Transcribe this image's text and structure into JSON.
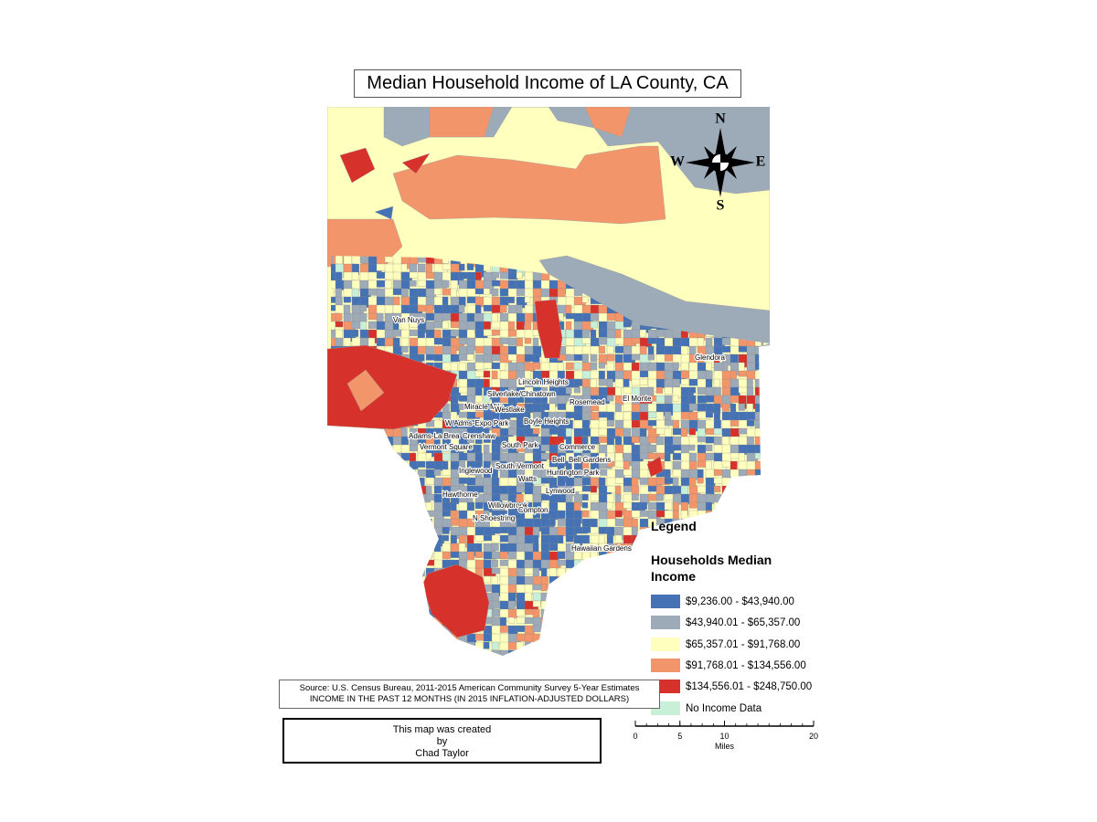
{
  "title": "Median Household Income of LA County, CA",
  "compass": {
    "north": "N",
    "south": "S",
    "east": "E",
    "west": "W"
  },
  "places": [
    "Van Nuys",
    "Glendora",
    "Lincoln Heights",
    "Silverlake/Chinatown",
    "Rosemead",
    "El Monte",
    "Miracle Mile",
    "Westlake",
    "W Adms-Expo Park",
    "Boyle Heights",
    "Adams-La Brea",
    "Crenshaw",
    "Vermont Square",
    "South Park",
    "Commerce",
    "Bell",
    "Bell Gardens",
    "South Vermont",
    "Huntington Park",
    "Inglewood",
    "Watts",
    "Lynwood",
    "Hawthorne",
    "Willowbrook",
    "Compton",
    "N Shoestring",
    "Hawaiian Gardens"
  ],
  "legend": {
    "title": "Legend",
    "subtitle": "Households Median Income",
    "items": [
      {
        "label": "$9,236.00 - $43,940.00",
        "color": "#4472b4"
      },
      {
        "label": "$43,940.01 - $65,357.00",
        "color": "#9daab8"
      },
      {
        "label": "$65,357.01 - $91,768.00",
        "color": "#ffffbe"
      },
      {
        "label": "$91,768.01 - $134,556.00",
        "color": "#f2956a"
      },
      {
        "label": "$134,556.01 - $248,750.00",
        "color": "#d7312b"
      },
      {
        "label": "No Income Data",
        "color": "#c8f0d8"
      }
    ]
  },
  "source": [
    "Source: U.S. Census Bureau, 2011-2015 American Community Survey 5-Year Estimates",
    "INCOME IN THE PAST 12 MONTHS (IN 2015 INFLATION-ADJUSTED DOLLARS)"
  ],
  "credit": [
    "This map was created",
    "by",
    "Chad Taylor"
  ],
  "scale_bar": {
    "ticks": [
      0,
      5,
      10,
      20
    ],
    "unit": "Miles"
  }
}
